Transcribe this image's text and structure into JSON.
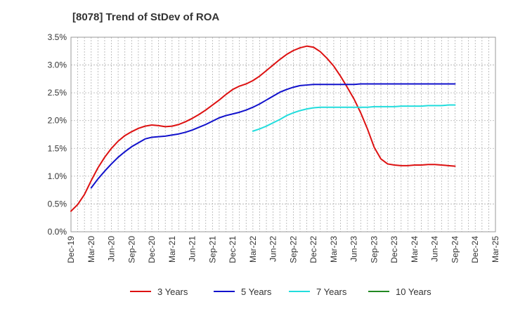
{
  "chart_data": {
    "type": "line",
    "title": "[8078]  Trend of StDev of ROA",
    "xlabel": "",
    "ylabel": "",
    "x_ticks": [
      "Dec-19",
      "Mar-20",
      "Jun-20",
      "Sep-20",
      "Dec-20",
      "Mar-21",
      "Jun-21",
      "Sep-21",
      "Dec-21",
      "Mar-22",
      "Jun-22",
      "Sep-22",
      "Dec-22",
      "Mar-23",
      "Jun-23",
      "Sep-23",
      "Dec-23",
      "Mar-24",
      "Jun-24",
      "Sep-24",
      "Dec-24",
      "Mar-25"
    ],
    "y_ticks": [
      "0.0%",
      "0.5%",
      "1.0%",
      "1.5%",
      "2.0%",
      "2.5%",
      "3.0%",
      "3.5%"
    ],
    "ylim": [
      0,
      3.5
    ],
    "y_unit": "%",
    "grid": true,
    "legend_position": "bottom",
    "series": [
      {
        "name": "3 Years",
        "color": "#dd1111",
        "start_index": 0,
        "values": [
          0.37,
          0.49,
          0.67,
          0.92,
          1.15,
          1.34,
          1.5,
          1.63,
          1.73,
          1.8,
          1.86,
          1.9,
          1.92,
          1.91,
          1.89,
          1.9,
          1.93,
          1.98,
          2.04,
          2.11,
          2.19,
          2.28,
          2.37,
          2.47,
          2.56,
          2.62,
          2.66,
          2.72,
          2.8,
          2.9,
          3.0,
          3.1,
          3.19,
          3.26,
          3.31,
          3.34,
          3.32,
          3.24,
          3.12,
          2.98,
          2.8,
          2.6,
          2.39,
          2.14,
          1.85,
          1.52,
          1.31,
          1.22,
          1.2,
          1.19,
          1.19,
          1.2,
          1.2,
          1.21,
          1.21,
          1.2,
          1.19,
          1.18
        ]
      },
      {
        "name": "5 Years",
        "color": "#1111cc",
        "start_index": 3,
        "values": [
          0.79,
          0.95,
          1.09,
          1.22,
          1.34,
          1.44,
          1.53,
          1.6,
          1.67,
          1.7,
          1.71,
          1.72,
          1.74,
          1.76,
          1.79,
          1.83,
          1.88,
          1.93,
          1.99,
          2.05,
          2.09,
          2.12,
          2.15,
          2.19,
          2.24,
          2.3,
          2.37,
          2.44,
          2.51,
          2.56,
          2.6,
          2.63,
          2.64,
          2.65,
          2.65,
          2.65,
          2.65,
          2.65,
          2.65,
          2.65,
          2.66,
          2.66,
          2.66,
          2.66,
          2.66,
          2.66,
          2.66,
          2.66,
          2.66,
          2.66,
          2.66,
          2.66,
          2.66,
          2.66,
          2.66
        ]
      },
      {
        "name": "7 Years",
        "color": "#22dddd",
        "start_index": 27,
        "values": [
          1.81,
          1.85,
          1.9,
          1.96,
          2.02,
          2.09,
          2.14,
          2.18,
          2.21,
          2.23,
          2.24,
          2.24,
          2.24,
          2.24,
          2.24,
          2.24,
          2.24,
          2.24,
          2.25,
          2.25,
          2.25,
          2.25,
          2.26,
          2.26,
          2.26,
          2.26,
          2.27,
          2.27,
          2.27,
          2.28,
          2.28
        ]
      },
      {
        "name": "10 Years",
        "color": "#228822",
        "start_index": 0,
        "values": []
      }
    ]
  }
}
